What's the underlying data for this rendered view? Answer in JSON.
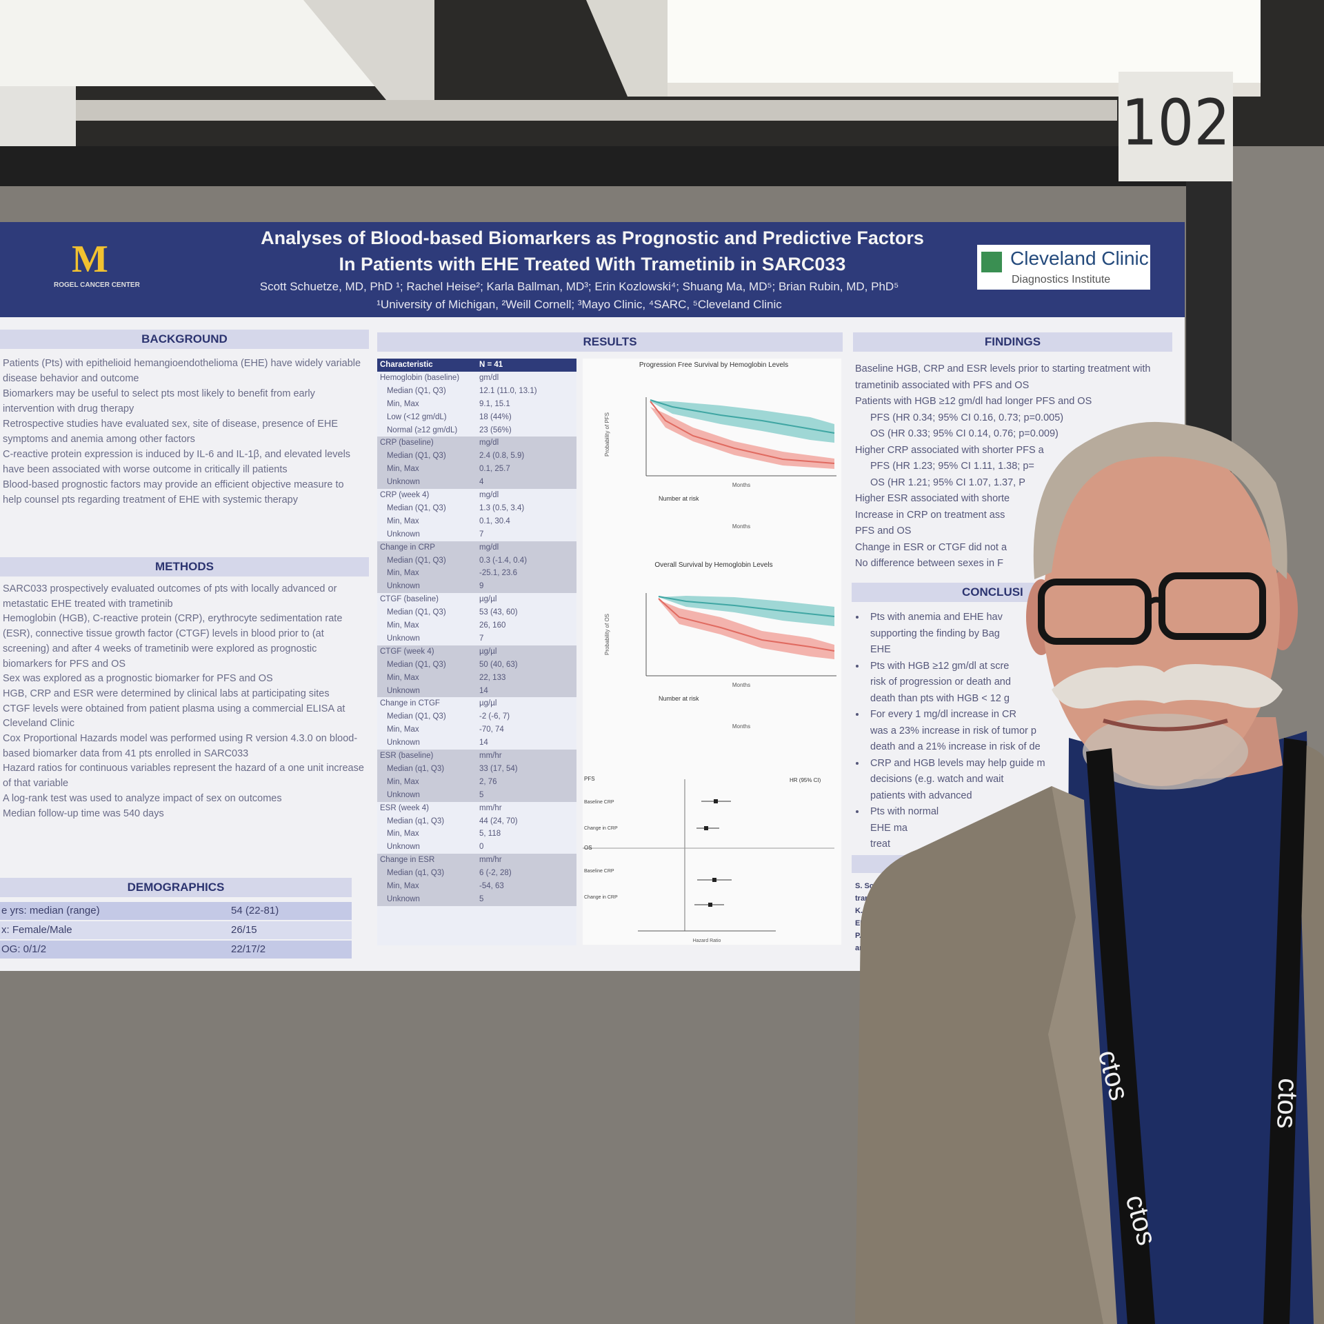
{
  "sign": {
    "number": "102"
  },
  "poster": {
    "header": {
      "title": [
        "Analyses of Blood-based Biomarkers as Prognostic and Predictive Factors",
        "In Patients with EHE Treated With Trametinib in SARC033"
      ],
      "authors": "Scott Schuetze, MD, PhD ¹; Rachel Heise²; Karla Ballman, MD³; Erin Kozlowski⁴; Shuang Ma, MD⁵; Brian Rubin, MD, PhD⁵",
      "affiliations": "¹University of Michigan, ²Weill Cornell; ³Mayo Clinic, ⁴SARC, ⁵Cleveland Clinic",
      "left_logo": {
        "mark": "M",
        "name": "ROGEL CANCER CENTER"
      },
      "right_logo": {
        "name": "Cleveland Clinic",
        "unit": "Diagnostics Institute"
      }
    },
    "background": {
      "heading": "BACKGROUND",
      "items": [
        "Patients (Pts) with epithelioid hemangioendothelioma (EHE) have widely variable disease behavior and outcome",
        "Biomarkers may be useful to select pts most likely to benefit from early intervention with drug therapy",
        "Retrospective studies have evaluated sex, site of disease, presence of EHE symptoms and anemia among other factors",
        "C-reactive protein expression is induced by IL-6 and IL-1β, and elevated levels have been associated with worse outcome in critically ill patients",
        "Blood-based prognostic factors may provide an efficient objective measure to help counsel pts regarding treatment of EHE with systemic therapy"
      ]
    },
    "methods": {
      "heading": "METHODS",
      "items": [
        "SARC033 prospectively evaluated outcomes of pts with locally advanced or metastatic EHE treated with trametinib",
        "Hemoglobin (HGB), C-reactive protein (CRP), erythrocyte sedimentation rate (ESR), connective tissue growth factor (CTGF) levels in blood prior to (at screening) and after 4 weeks of trametinib were explored as prognostic biomarkers for PFS and OS",
        "Sex was explored as a prognostic biomarker for PFS and OS",
        "HGB, CRP and ESR were determined by clinical labs at participating sites",
        "CTGF levels were obtained from patient plasma using a commercial ELISA at Cleveland Clinic",
        "Cox Proportional Hazards model was performed using R version 4.3.0 on blood-based biomarker data from 41 pts enrolled in SARC033",
        "Hazard ratios for continuous variables represent the hazard of a one unit increase of that variable",
        "A log-rank test was used to analyze impact of sex on outcomes",
        "Median follow-up time was 540 days"
      ]
    },
    "demographics": {
      "heading": "DEMOGRAPHICS",
      "rows": [
        [
          "e yrs: median (range)",
          "54 (22-81)"
        ],
        [
          "x: Female/Male",
          "26/15"
        ],
        [
          "OG: 0/1/2",
          "22/17/2"
        ]
      ]
    },
    "results": {
      "heading": "RESULTS",
      "table": {
        "columns": [
          "Characteristic",
          "N = 41"
        ],
        "groups": [
          {
            "name": "Hemoglobin (baseline)",
            "unit": "gm/dl",
            "rows": [
              [
                "Median (Q1, Q3)",
                "12.1 (11.0, 13.1)"
              ],
              [
                "Min, Max",
                "9.1, 15.1"
              ],
              [
                "Low (<12 gm/dL)",
                "18 (44%)"
              ],
              [
                "Normal (≥12 gm/dL)",
                "23 (56%)"
              ]
            ]
          },
          {
            "name": "CRP (baseline)",
            "unit": "mg/dl",
            "rows": [
              [
                "Median (Q1, Q3)",
                "2.4 (0.8, 5.9)"
              ],
              [
                "Min, Max",
                "0.1, 25.7"
              ],
              [
                "Unknown",
                "4"
              ]
            ]
          },
          {
            "name": "CRP (week 4)",
            "unit": "mg/dl",
            "rows": [
              [
                "Median (Q1, Q3)",
                "1.3 (0.5, 3.4)"
              ],
              [
                "Min, Max",
                "0.1, 30.4"
              ],
              [
                "Unknown",
                "7"
              ]
            ]
          },
          {
            "name": "Change in CRP",
            "unit": "mg/dl",
            "rows": [
              [
                "Median (Q1, Q3)",
                "0.3 (-1.4, 0.4)"
              ],
              [
                "Min, Max",
                "-25.1, 23.6"
              ],
              [
                "Unknown",
                "9"
              ]
            ]
          },
          {
            "name": "CTGF (baseline)",
            "unit": "µg/µl",
            "rows": [
              [
                "Median (Q1, Q3)",
                "53 (43, 60)"
              ],
              [
                "Min, Max",
                "26, 160"
              ],
              [
                "Unknown",
                "7"
              ]
            ]
          },
          {
            "name": "CTGF (week 4)",
            "unit": "µg/µl",
            "rows": [
              [
                "Median (Q1, Q3)",
                "50 (40, 63)"
              ],
              [
                "Min, Max",
                "22, 133"
              ],
              [
                "Unknown",
                "14"
              ]
            ]
          },
          {
            "name": "Change in CTGF",
            "unit": "µg/µl",
            "rows": [
              [
                "Median (Q1, Q3)",
                "-2 (-6, 7)"
              ],
              [
                "Min, Max",
                "-70, 74"
              ],
              [
                "Unknown",
                "14"
              ]
            ]
          },
          {
            "name": "ESR (baseline)",
            "unit": "mm/hr",
            "rows": [
              [
                "Median (q1, Q3)",
                "33 (17, 54)"
              ],
              [
                "Min, Max",
                "2, 76"
              ],
              [
                "Unknown",
                "5"
              ]
            ]
          },
          {
            "name": "ESR (week 4)",
            "unit": "mm/hr",
            "rows": [
              [
                "Median (q1, Q3)",
                "44 (24, 70)"
              ],
              [
                "Min, Max",
                "5, 118"
              ],
              [
                "Unknown",
                "0"
              ]
            ]
          },
          {
            "name": "Change in ESR",
            "unit": "mm/hr",
            "rows": [
              [
                "Median (q1, Q3)",
                "6 (-2, 28)"
              ],
              [
                "Min, Max",
                "-54, 63"
              ],
              [
                "Unknown",
                "5"
              ]
            ]
          }
        ]
      },
      "pfs_chart": {
        "title": "Progression Free Survival by Hemoglobin Levels",
        "y_label": "Probability of PFS",
        "x_label": "Months",
        "risk_label": "Number at risk"
      },
      "os_chart": {
        "title": "Overall Survival by Hemoglobin Levels",
        "y_label": "Probability of OS",
        "x_label": "Months",
        "risk_label": "Number at risk"
      },
      "forest": {
        "column": "HR (95% CI)",
        "sections": [
          {
            "name": "PFS",
            "rows": [
              "Baseline CRP",
              "Change in CRP"
            ]
          },
          {
            "name": "OS",
            "rows": [
              "Baseline CRP",
              "Change in CRP"
            ]
          }
        ],
        "x_label": "Hazard Ratio"
      }
    },
    "findings": {
      "heading": "FINDINGS",
      "items": [
        {
          "text": "Baseline HGB, CRP and ESR levels prior to starting treatment with trametinib associated with PFS and OS"
        },
        {
          "text": "Patients with HGB ≥12 gm/dl had longer PFS and OS",
          "sub": [
            "PFS (HR 0.34; 95% CI 0.16, 0.73; p=0.005)",
            "OS (HR 0.33; 95% CI 0.14, 0.76; p=0.009)"
          ]
        },
        {
          "text": "Higher CRP associated with shorter PFS a",
          "sub": [
            "PFS (HR 1.23; 95% CI 1.11, 1.38; p=",
            "OS (HR 1.21; 95% CI 1.07, 1.37, P"
          ]
        },
        {
          "text": "Higher ESR associated with shorte"
        },
        {
          "text": "Increase in CRP on treatment ass"
        },
        {
          "text": "PFS and OS"
        },
        {
          "text": "Change in ESR or CTGF did not a"
        },
        {
          "text": "No difference between sexes in F"
        }
      ]
    },
    "conclusions": {
      "heading": "CONCLUSI",
      "items": [
        [
          "Pts with anemia and EHE hav",
          "supporting the finding by Bag",
          "EHE"
        ],
        [
          "Pts with HGB ≥12 gm/dl at scre",
          "risk of progression or death and",
          "death than pts with HGB < 12 g"
        ],
        [
          "For every 1 mg/dl increase in CR",
          "was a 23% increase in risk of tumor p",
          "death and a 21% increase in risk of de"
        ],
        [
          "CRP and HGB levels may help guide m",
          "decisions (e.g. watch and wait",
          "patients with advanced"
        ],
        [
          "Pts with normal",
          "EHE ma",
          "treat"
        ]
      ]
    },
    "references": {
      "lines": [
        "S. Schu",
        "tramet",
        "K. Liu",
        "EHE w",
        "P. Bag",
        "and"
      ]
    }
  },
  "lanyard": {
    "text": "ctos"
  }
}
